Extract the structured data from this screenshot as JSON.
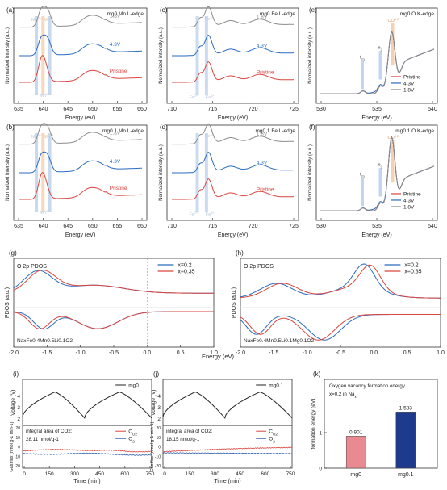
{
  "colors": {
    "pristine": "#d9453f",
    "v43": "#2a6bbf",
    "v18": "#8c8c8c",
    "x02": "#2a6bbf",
    "x035": "#d9453f",
    "co2": "#d9453f",
    "o2": "#2a5aa8",
    "bar_mg0": "#e98a90",
    "bar_mg01": "#1e3a8c",
    "band_blue": "#a9c4e6",
    "band_orange": "#f2c29a"
  },
  "panels": {
    "a": {
      "letter": "(a)",
      "title": "mg0 Mn L-edge",
      "xlabel": "Energy (eV)",
      "ylabel": "Normalized intensity (a.u.)",
      "xticks": [
        "635",
        "640",
        "645",
        "650",
        "655",
        "660"
      ],
      "curve_labels": [
        "1.8V",
        "4.3V",
        "Pristine"
      ],
      "ion_labels": [
        "Mn3+",
        "Mn4+",
        "Mn2+"
      ]
    },
    "b": {
      "letter": "(b)",
      "title": "mg0.1 Mn L-edge",
      "xlabel": "Energy (eV)",
      "ylabel": "Normalized intensity (a.u.)",
      "xticks": [
        "635",
        "640",
        "645",
        "650",
        "655",
        "660"
      ],
      "curve_labels": [
        "1.8V",
        "4.3V",
        "Pristine"
      ],
      "ion_labels": [
        "Mn3+",
        "Mn4+",
        "Mn2+"
      ]
    },
    "c": {
      "letter": "(c)",
      "title": "mg0 Fe L-edge",
      "xlabel": "Energy (eV)",
      "ylabel": "Normalized intensity (a.u.)",
      "xticks": [
        "710",
        "715",
        "720",
        "725"
      ],
      "curve_labels": [
        "1.8V",
        "4.3V",
        "Pristine"
      ],
      "ion_labels": [
        "Fe3+",
        "Fe2+"
      ]
    },
    "d": {
      "letter": "(d)",
      "title": "mg0.1 Fe L-edge",
      "xlabel": "Energy (eV)",
      "ylabel": "Normalized intensity (a.u.)",
      "xticks": [
        "710",
        "715",
        "720",
        "725"
      ],
      "curve_labels": [
        "1.8V",
        "4.3V",
        "Pristine"
      ],
      "ion_labels": [
        "Fe3+",
        "Fe2+"
      ]
    },
    "e": {
      "letter": "(e)",
      "title": "mg0 O K-edge",
      "xlabel": "Energy (eV)",
      "ylabel": "Normalized intensity (a.u.)",
      "xticks": [
        "530",
        "535",
        "540"
      ],
      "band_labels": [
        "t2g",
        "eg",
        "CO32-"
      ],
      "legend": [
        "Pristine",
        "4.3V",
        "1.8V"
      ]
    },
    "f": {
      "letter": "(f)",
      "title": "mg0.1 O K-edge",
      "xlabel": "Energy (eV)",
      "ylabel": "Normalized intensity (a.u.)",
      "xticks": [
        "530",
        "535",
        "540"
      ],
      "band_labels": [
        "t2g",
        "eg",
        "CO32-"
      ],
      "legend": [
        "Pristine",
        "4.3V",
        "1.8V"
      ]
    },
    "g": {
      "letter": "(g)",
      "title": "O 2p PDOS",
      "ylabel": "PDOS (a.u.)",
      "formula": "NaxFe0.4Mn0.5Li0.1O2",
      "legend": [
        "x=0.2",
        "x=0.35"
      ],
      "xticks": [
        "-2.0",
        "-1.5",
        "-1.0",
        "-0.5",
        "0.0",
        "0.5",
        "1.0"
      ]
    },
    "h": {
      "letter": "(h)",
      "title": "O 2p PDOS",
      "ylabel": "PDOS (a.u.)",
      "formula": "NaxFe0.4Mn0.5Li0.1Mg0.1O2",
      "legend": [
        "x=0.2",
        "x=0.35"
      ],
      "xticks": [
        "-2.0",
        "-1.5",
        "-1.0",
        "-0.5",
        "0.0",
        "0.5",
        "1.0"
      ]
    },
    "gh_xlabel": "Energy (eV)",
    "i": {
      "letter": "(i)",
      "legend_top": "mg0",
      "ylabel_top": "Voltage (V)",
      "yticks_top": [
        "2",
        "3",
        "4"
      ],
      "ylabel_bottom": "Gas flux (nmol g-1 min-1)",
      "yticks_bottom": [
        "-20",
        "-10",
        "0",
        "10",
        "20"
      ],
      "xticks": [
        "0",
        "150",
        "300",
        "450",
        "600",
        "750"
      ],
      "xlabel": "Time (min)",
      "integral_label": "integral area of CO2:",
      "integral_value": "28.11 nmol/g-1",
      "legend_bottom": [
        "CO2",
        "O2"
      ]
    },
    "j": {
      "letter": "(j)",
      "legend_top": "mg0.1",
      "ylabel_top": "Voltage (V)",
      "yticks_top": [
        "2",
        "3",
        "4"
      ],
      "ylabel_bottom": "Gas flux (nmol g-1 min-1)",
      "yticks_bottom": [
        "-20",
        "-10",
        "0",
        "10",
        "20"
      ],
      "xticks": [
        "0",
        "150",
        "300",
        "450",
        "600",
        "750"
      ],
      "xlabel": "Time (min)",
      "integral_label": "integral area of CO2:",
      "integral_value": "18.15 nmol/g-1",
      "legend_bottom": [
        "CO2",
        "O2"
      ]
    },
    "k": {
      "letter": "(k)",
      "title1": "Oxygen vacancy formation energy",
      "title2": "x=0.2 in Nax",
      "ylabel": "formation energy (eV)",
      "yticks": [
        "0",
        "1"
      ]
    }
  },
  "chart_data": [
    {
      "type": "line",
      "panel": "a",
      "x_range": [
        635,
        660
      ],
      "series": [
        {
          "name": "Pristine"
        },
        {
          "name": "4.3V"
        },
        {
          "name": "1.8V"
        }
      ]
    },
    {
      "type": "line",
      "panel": "b",
      "x_range": [
        635,
        660
      ],
      "series": [
        {
          "name": "Pristine"
        },
        {
          "name": "4.3V"
        },
        {
          "name": "1.8V"
        }
      ]
    },
    {
      "type": "line",
      "panel": "c",
      "x_range": [
        705,
        728
      ],
      "series": [
        {
          "name": "Pristine"
        },
        {
          "name": "4.3V"
        },
        {
          "name": "1.8V"
        }
      ]
    },
    {
      "type": "line",
      "panel": "d",
      "x_range": [
        705,
        728
      ],
      "series": [
        {
          "name": "Pristine"
        },
        {
          "name": "4.3V"
        },
        {
          "name": "1.8V"
        }
      ]
    },
    {
      "type": "line",
      "panel": "e",
      "x_range": [
        527,
        542
      ],
      "series": [
        {
          "name": "Pristine"
        },
        {
          "name": "4.3V"
        },
        {
          "name": "1.8V"
        }
      ]
    },
    {
      "type": "line",
      "panel": "f",
      "x_range": [
        527,
        542
      ],
      "series": [
        {
          "name": "Pristine"
        },
        {
          "name": "4.3V"
        },
        {
          "name": "1.8V"
        }
      ]
    },
    {
      "type": "line",
      "panel": "g",
      "x_range": [
        -2.0,
        1.0
      ],
      "series": [
        {
          "name": "x=0.2"
        },
        {
          "name": "x=0.35"
        }
      ]
    },
    {
      "type": "line",
      "panel": "h",
      "x_range": [
        -2.0,
        1.0
      ],
      "series": [
        {
          "name": "x=0.2"
        },
        {
          "name": "x=0.35"
        }
      ]
    },
    {
      "type": "line",
      "panel": "i",
      "x_range": [
        0,
        750
      ],
      "voltage_range": [
        2,
        4.5
      ],
      "gas_range": [
        -20,
        20
      ],
      "series": [
        {
          "name": "mg0"
        },
        {
          "name": "CO2"
        },
        {
          "name": "O2"
        }
      ]
    },
    {
      "type": "line",
      "panel": "j",
      "x_range": [
        0,
        750
      ],
      "voltage_range": [
        2,
        4.5
      ],
      "gas_range": [
        -20,
        20
      ],
      "series": [
        {
          "name": "mg0.1"
        },
        {
          "name": "CO2"
        },
        {
          "name": "O2"
        }
      ]
    },
    {
      "type": "bar",
      "panel": "k",
      "categories": [
        "mg0",
        "mg0.1"
      ],
      "values": [
        0.901,
        1.583
      ],
      "value_labels": [
        "0.901",
        "1.583"
      ],
      "ylabel": "formation energy (eV)",
      "ylim": [
        0,
        2
      ]
    }
  ]
}
